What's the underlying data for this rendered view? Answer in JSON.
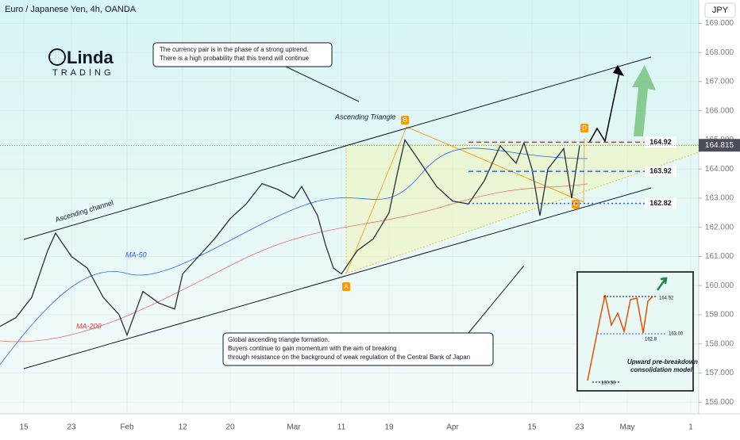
{
  "chart_data": {
    "type": "line",
    "title": "Euro / Japanese Yen, 4h, OANDA",
    "currency": "JPY",
    "logo": {
      "name": "Linda",
      "sub": "TRADING"
    },
    "color": "#2a2e39",
    "x": [
      -3,
      -1,
      1,
      3,
      4,
      6,
      8,
      10,
      12,
      13,
      15,
      17,
      19,
      20,
      22,
      24,
      26,
      28,
      30,
      32,
      34,
      35,
      37,
      38,
      39,
      40,
      42,
      44,
      46,
      47,
      48,
      50,
      52,
      54,
      56,
      58,
      60,
      62,
      63,
      64,
      65,
      66,
      68,
      69,
      70
    ],
    "values": [
      158.6,
      158.9,
      159.6,
      161.2,
      161.8,
      161.0,
      160.6,
      159.6,
      159.0,
      158.3,
      159.8,
      159.4,
      159.2,
      160.4,
      161.0,
      161.6,
      162.3,
      162.8,
      163.5,
      163.3,
      163.0,
      163.4,
      162.4,
      161.4,
      160.6,
      160.4,
      161.2,
      161.6,
      162.5,
      163.8,
      165.0,
      164.2,
      163.4,
      162.9,
      162.8,
      163.6,
      164.8,
      164.2,
      164.9,
      164.0,
      162.4,
      164.0,
      164.7,
      163.0,
      164.8
    ],
    "last_price": {
      "value": 164.815,
      "label": "164.815"
    },
    "xlim": [
      -3,
      85
    ],
    "xticks": [
      {
        "value": 0,
        "label": "15"
      },
      {
        "value": 6,
        "label": "23"
      },
      {
        "value": 13,
        "label": "Feb"
      },
      {
        "value": 20,
        "label": "12"
      },
      {
        "value": 26,
        "label": "20"
      },
      {
        "value": 34,
        "label": "Mar"
      },
      {
        "value": 40,
        "label": "11"
      },
      {
        "value": 46,
        "label": "19"
      },
      {
        "value": 54,
        "label": "Apr"
      },
      {
        "value": 64,
        "label": "15"
      },
      {
        "value": 70,
        "label": "23"
      },
      {
        "value": 76,
        "label": "May"
      },
      {
        "value": 84,
        "label": "1"
      }
    ],
    "ylim": [
      155.6,
      169.8
    ],
    "yticks": [
      {
        "value": 156,
        "label": "156.000"
      },
      {
        "value": 157,
        "label": "157.000"
      },
      {
        "value": 158,
        "label": "158.000"
      },
      {
        "value": 159,
        "label": "159.000"
      },
      {
        "value": 160,
        "label": "160.000"
      },
      {
        "value": 161,
        "label": "161.000"
      },
      {
        "value": 162,
        "label": "162.000"
      },
      {
        "value": 163,
        "label": "163.000"
      },
      {
        "value": 164,
        "label": "164.000"
      },
      {
        "value": 165,
        "label": "165.000"
      },
      {
        "value": 166,
        "label": "166.000"
      },
      {
        "value": 167,
        "label": "167.000"
      },
      {
        "value": 168,
        "label": "168.000"
      },
      {
        "value": 169,
        "label": "169.000"
      }
    ],
    "levels": [
      {
        "value": 164.92,
        "label": "164.92",
        "color": "#d32f2f"
      },
      {
        "value": 163.92,
        "label": "163.92",
        "color": "#2962ff"
      },
      {
        "value": 162.82,
        "label": "162.82",
        "color": "#2962ff"
      }
    ],
    "annotations": {
      "top": [
        "The currency pair is in the phase of a strong uptrend.",
        "There is a high probability that this trend will continue"
      ],
      "bottom": [
        "Global ascending triangle formation.",
        "Buyers continue to gain momentum with the aim of breaking",
        "through resistance on the background of weak regulation of the Central Bank of Japan"
      ],
      "triangle": "Ascending Triangle",
      "channel": "Ascending channel",
      "ma50": "MA-50",
      "ma200": "MA-200",
      "points": [
        "A",
        "B",
        "C",
        "D"
      ]
    },
    "inset": {
      "labels": [
        "164.92",
        "163.00",
        "162.8",
        "160.56"
      ],
      "caption": [
        "Upward pre-breakdown",
        "consolidation model"
      ]
    }
  }
}
